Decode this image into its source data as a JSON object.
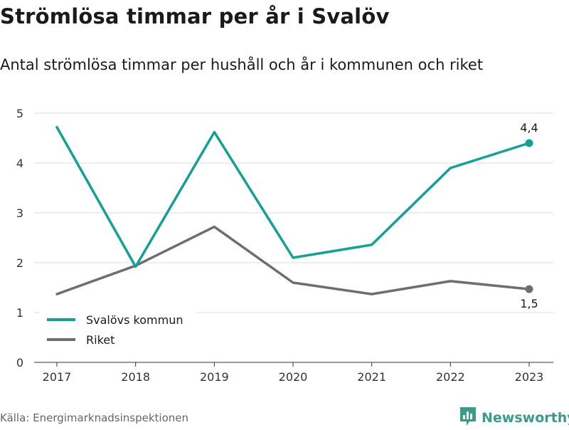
{
  "header": {
    "title": "Strömlösa timmar per år i Svalöv",
    "subtitle": "Antal strömlösa timmar per hushåll och år i kommunen och riket"
  },
  "footer": {
    "source": "Källa: Energimarknadsinspektionen",
    "brand": "Newsworthy",
    "brand_icon": "bar-chart-logo-icon"
  },
  "chart_data": {
    "type": "line",
    "x": [
      "2017",
      "2018",
      "2019",
      "2020",
      "2021",
      "2022",
      "2023"
    ],
    "series": [
      {
        "name": "Svalövs kommun",
        "color": "#14a095",
        "values": [
          4.72,
          1.92,
          4.62,
          2.1,
          2.36,
          3.9,
          4.4
        ],
        "end_label": "4,4"
      },
      {
        "name": "Riket",
        "color": "#6e6d73",
        "values": [
          1.37,
          1.94,
          2.72,
          1.6,
          1.37,
          1.63,
          1.47
        ],
        "end_label": "1,5"
      }
    ],
    "ylim": [
      0,
      5
    ],
    "yticks": [
      "0",
      "1",
      "2",
      "3",
      "4",
      "5"
    ],
    "grid": true,
    "legend_position": "bottom-left"
  }
}
